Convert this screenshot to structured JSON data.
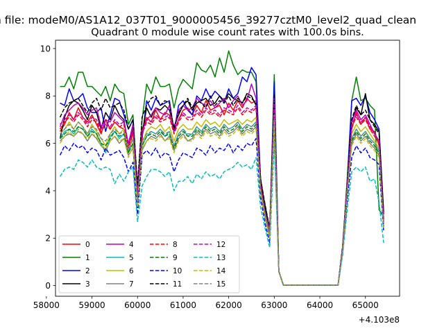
{
  "suptitle": "n file: modeM0/AS1A12_037T01_9000005456_39277cztM0_level2_quad_clean",
  "chart_data": {
    "type": "line",
    "title": "Quadrant 0 module wise count rates with 100.0s bins.",
    "xlabel": "",
    "ylabel": "",
    "x_offset_label": "+4.103e8",
    "xlim": [
      58200,
      65750
    ],
    "ylim": [
      -0.45,
      10.35
    ],
    "x_ticks": [
      58000,
      59000,
      60000,
      61000,
      62000,
      63000,
      64000,
      65000
    ],
    "x_tick_labels": [
      "58000",
      "59000",
      "60000",
      "61000",
      "62000",
      "63000",
      "64000",
      "65000"
    ],
    "y_ticks": [
      0,
      2,
      4,
      6,
      8,
      10
    ],
    "y_tick_labels": [
      "0",
      "2",
      "4",
      "6",
      "8",
      "10"
    ],
    "grid": false,
    "legend_position": "lower-left",
    "legend_columns": 4,
    "x": [
      58300,
      58400,
      58500,
      58600,
      58700,
      58800,
      58900,
      59000,
      59100,
      59200,
      59300,
      59400,
      59500,
      59600,
      59700,
      59800,
      59900,
      60000,
      60100,
      60200,
      60300,
      60400,
      60500,
      60600,
      60700,
      60800,
      60900,
      61000,
      61100,
      61200,
      61300,
      61400,
      61500,
      61600,
      61700,
      61800,
      61900,
      62000,
      62100,
      62200,
      62300,
      62400,
      62500,
      62600,
      62700,
      62800,
      62900,
      63000,
      63100,
      63200,
      64400,
      64500,
      64600,
      64700,
      64800,
      64900,
      65000,
      65100,
      65200,
      65300,
      65400
    ],
    "series": [
      {
        "name": "0",
        "color": "#ff0000",
        "dash": "solid",
        "values": [
          6.5,
          6.8,
          7.3,
          7.0,
          7.5,
          7.1,
          6.9,
          7.2,
          6.8,
          6.4,
          7.0,
          6.6,
          6.9,
          6.7,
          6.6,
          5.6,
          6.5,
          3.6,
          6.6,
          7.1,
          6.9,
          7.4,
          7.0,
          7.3,
          7.2,
          6.5,
          7.0,
          7.4,
          7.5,
          7.2,
          7.6,
          7.3,
          7.8,
          7.4,
          7.5,
          7.6,
          7.2,
          7.7,
          7.4,
          7.8,
          7.5,
          7.9,
          7.7,
          7.8,
          4.2,
          3.1,
          2.4,
          8.2,
          0.6,
          0.02,
          0.02,
          1.6,
          4.2,
          6.6,
          7.3,
          6.8,
          7.1,
          6.6,
          6.5,
          5.9,
          2.7
        ]
      },
      {
        "name": "1",
        "color": "#008000",
        "dash": "solid",
        "values": [
          8.4,
          8.4,
          8.8,
          8.3,
          9.0,
          9.0,
          8.4,
          8.4,
          8.2,
          8.0,
          8.4,
          7.8,
          8.5,
          8.2,
          8.1,
          6.8,
          7.2,
          4.2,
          7.0,
          8.5,
          8.1,
          8.8,
          8.4,
          8.4,
          8.5,
          7.5,
          8.3,
          8.7,
          8.5,
          8.3,
          9.4,
          9.1,
          9.0,
          9.3,
          8.8,
          9.6,
          9.0,
          9.9,
          9.3,
          8.9,
          9.1,
          9.0,
          9.0,
          8.6,
          4.2,
          3.4,
          2.3,
          8.9,
          0.6,
          0.02,
          0.02,
          1.6,
          4.5,
          7.8,
          8.8,
          7.8,
          7.9,
          7.6,
          7.4,
          3.2,
          2.9
        ]
      },
      {
        "name": "2",
        "color": "#0000ff",
        "dash": "solid",
        "values": [
          7.7,
          7.6,
          8.3,
          7.8,
          7.9,
          8.1,
          7.5,
          7.3,
          7.3,
          7.5,
          6.5,
          7.2,
          7.9,
          7.8,
          7.2,
          6.6,
          7.0,
          3.9,
          6.2,
          7.8,
          7.4,
          7.9,
          7.6,
          7.7,
          7.8,
          6.5,
          7.6,
          7.8,
          7.4,
          7.2,
          8.0,
          7.8,
          8.3,
          7.9,
          8.2,
          8.0,
          7.7,
          8.3,
          7.9,
          8.1,
          8.8,
          8.6,
          9.2,
          8.9,
          4.4,
          3.2,
          2.2,
          8.6,
          0.6,
          0.02,
          0.02,
          1.6,
          4.2,
          7.8,
          7.9,
          7.6,
          8.0,
          7.3,
          7.0,
          6.6,
          3.0
        ]
      },
      {
        "name": "3",
        "color": "#000000",
        "dash": "solid",
        "values": [
          6.2,
          7.1,
          7.6,
          7.8,
          7.7,
          7.4,
          7.0,
          7.6,
          7.3,
          6.6,
          7.3,
          7.0,
          7.6,
          7.2,
          7.0,
          5.9,
          6.7,
          3.8,
          6.4,
          7.5,
          7.1,
          7.5,
          7.4,
          7.6,
          7.4,
          6.7,
          7.2,
          7.6,
          7.8,
          7.4,
          7.7,
          7.8,
          7.9,
          7.6,
          7.7,
          8.0,
          7.8,
          8.1,
          7.9,
          7.8,
          7.7,
          8.1,
          8.0,
          7.6,
          4.5,
          3.3,
          2.4,
          7.9,
          0.6,
          0.02,
          0.02,
          1.6,
          4.3,
          6.9,
          7.5,
          7.2,
          8.1,
          7.0,
          6.8,
          6.5,
          3.1
        ]
      },
      {
        "name": "4",
        "color": "#bf00bf",
        "dash": "solid",
        "values": [
          6.7,
          7.2,
          7.4,
          7.6,
          7.7,
          7.5,
          7.2,
          7.4,
          7.5,
          6.7,
          7.0,
          6.9,
          7.3,
          7.1,
          6.9,
          6.0,
          6.8,
          4.1,
          6.5,
          7.0,
          7.2,
          7.5,
          7.3,
          7.2,
          7.6,
          6.6,
          7.4,
          7.6,
          7.4,
          7.5,
          7.9,
          7.7,
          7.6,
          7.8,
          7.5,
          7.7,
          7.9,
          7.5,
          7.8,
          8.0,
          7.6,
          7.8,
          8.5,
          7.9,
          4.3,
          3.0,
          2.3,
          8.0,
          0.6,
          0.02,
          0.02,
          1.6,
          4.2,
          6.9,
          7.4,
          7.0,
          7.2,
          6.8,
          6.4,
          6.1,
          2.6
        ]
      },
      {
        "name": "5",
        "color": "#00bfbf",
        "dash": "solid",
        "values": [
          6.2,
          6.5,
          6.6,
          6.4,
          6.7,
          6.6,
          6.3,
          6.6,
          6.4,
          6.0,
          5.6,
          6.3,
          6.5,
          6.2,
          6.4,
          5.7,
          6.0,
          3.4,
          5.9,
          6.3,
          6.5,
          6.4,
          6.6,
          6.3,
          6.5,
          5.9,
          6.4,
          6.6,
          6.3,
          6.4,
          6.7,
          6.5,
          6.8,
          6.6,
          6.7,
          6.5,
          6.8,
          6.6,
          6.7,
          6.9,
          6.6,
          6.8,
          6.7,
          6.9,
          4.0,
          3.0,
          2.1,
          7.2,
          0.6,
          0.02,
          0.02,
          1.5,
          4.0,
          6.2,
          6.6,
          6.3,
          6.5,
          6.2,
          6.0,
          5.7,
          2.5
        ]
      },
      {
        "name": "6",
        "color": "#bfbf00",
        "dash": "solid",
        "values": [
          6.4,
          6.6,
          6.9,
          6.6,
          6.9,
          6.7,
          6.4,
          6.8,
          6.5,
          6.2,
          5.9,
          6.4,
          6.7,
          6.4,
          6.6,
          5.9,
          6.2,
          3.5,
          6.0,
          6.5,
          6.7,
          6.6,
          6.8,
          6.5,
          6.7,
          6.1,
          6.6,
          6.8,
          6.6,
          6.6,
          6.9,
          6.7,
          7.0,
          6.8,
          6.9,
          6.7,
          7.0,
          6.8,
          6.9,
          7.0,
          6.8,
          7.0,
          6.9,
          7.1,
          4.1,
          3.0,
          2.2,
          7.5,
          0.6,
          0.02,
          0.02,
          1.5,
          4.1,
          6.4,
          6.8,
          6.5,
          6.7,
          6.4,
          6.1,
          5.8,
          2.6
        ]
      },
      {
        "name": "7",
        "color": "#808080",
        "dash": "solid",
        "values": [
          6.1,
          6.3,
          6.4,
          6.3,
          6.5,
          6.4,
          6.1,
          6.4,
          6.2,
          5.9,
          5.7,
          6.1,
          6.3,
          6.0,
          6.2,
          5.5,
          5.8,
          3.3,
          5.7,
          6.1,
          6.3,
          6.2,
          6.4,
          6.1,
          6.3,
          5.7,
          6.2,
          6.4,
          6.1,
          6.2,
          6.5,
          6.3,
          6.6,
          6.4,
          6.5,
          6.3,
          6.6,
          6.4,
          6.5,
          6.7,
          6.4,
          6.6,
          6.5,
          6.7,
          3.9,
          2.9,
          2.0,
          7.0,
          0.6,
          0.02,
          0.02,
          1.5,
          3.9,
          6.0,
          6.4,
          6.1,
          6.3,
          6.0,
          5.8,
          5.5,
          2.4
        ]
      },
      {
        "name": "8",
        "color": "#ff0000",
        "dash": "dashed",
        "values": [
          6.6,
          6.9,
          7.1,
          6.9,
          7.2,
          7.0,
          6.7,
          7.0,
          6.9,
          6.5,
          6.8,
          6.6,
          6.9,
          6.7,
          6.8,
          5.8,
          6.5,
          3.7,
          6.4,
          6.9,
          6.8,
          7.1,
          6.9,
          7.0,
          7.1,
          6.4,
          6.9,
          7.2,
          7.0,
          7.0,
          7.3,
          7.1,
          7.4,
          7.2,
          7.3,
          7.1,
          7.4,
          7.3,
          7.2,
          7.5,
          7.2,
          7.4,
          7.3,
          7.5,
          4.2,
          3.1,
          2.3,
          7.7,
          0.6,
          0.02,
          0.02,
          1.6,
          4.2,
          6.7,
          7.1,
          6.8,
          7.0,
          6.6,
          6.3,
          6.0,
          2.7
        ]
      },
      {
        "name": "9",
        "color": "#008000",
        "dash": "dashed",
        "values": [
          6.2,
          6.4,
          6.6,
          6.5,
          6.7,
          6.6,
          6.3,
          6.5,
          6.4,
          6.0,
          5.9,
          6.2,
          6.5,
          6.3,
          6.4,
          5.6,
          6.0,
          3.4,
          5.9,
          6.3,
          6.4,
          6.3,
          6.5,
          6.3,
          6.4,
          5.8,
          6.3,
          6.5,
          6.3,
          6.3,
          6.6,
          6.4,
          6.7,
          6.5,
          6.6,
          6.4,
          6.7,
          6.5,
          6.6,
          6.8,
          6.5,
          6.7,
          6.6,
          6.8,
          4.0,
          2.9,
          2.1,
          7.1,
          0.6,
          0.02,
          0.02,
          1.5,
          4.0,
          6.1,
          6.5,
          6.2,
          6.4,
          6.1,
          5.9,
          5.6,
          2.5
        ]
      },
      {
        "name": "10",
        "color": "#0000ff",
        "dash": "dashed",
        "values": [
          5.5,
          5.9,
          5.7,
          6.0,
          5.8,
          5.9,
          5.6,
          5.8,
          5.7,
          5.3,
          5.8,
          5.5,
          5.6,
          5.7,
          5.4,
          4.8,
          5.2,
          3.0,
          5.5,
          5.7,
          5.5,
          5.8,
          5.4,
          5.6,
          5.5,
          4.8,
          5.3,
          5.6,
          5.5,
          5.4,
          5.8,
          5.7,
          5.5,
          5.9,
          5.6,
          5.8,
          5.7,
          6.0,
          5.6,
          5.9,
          5.7,
          6.0,
          5.9,
          6.2,
          3.7,
          2.6,
          1.8,
          6.5,
          0.6,
          0.02,
          0.02,
          1.4,
          3.6,
          5.4,
          5.9,
          5.6,
          5.8,
          5.4,
          5.3,
          5.1,
          2.3
        ]
      },
      {
        "name": "11",
        "color": "#000000",
        "dash": "dashed",
        "values": [
          7.1,
          7.5,
          7.7,
          7.8,
          7.9,
          7.6,
          7.3,
          7.7,
          7.9,
          7.4,
          7.9,
          7.5,
          7.6,
          7.7,
          7.4,
          6.6,
          7.0,
          4.2,
          7.1,
          7.6,
          7.9,
          8.0,
          7.6,
          7.8,
          7.7,
          6.6,
          7.3,
          7.6,
          7.9,
          7.5,
          7.8,
          7.7,
          7.5,
          8.0,
          7.6,
          7.8,
          7.7,
          8.0,
          7.6,
          7.9,
          7.7,
          8.0,
          7.9,
          7.7,
          4.5,
          3.4,
          2.4,
          8.1,
          0.6,
          0.02,
          0.02,
          1.7,
          4.3,
          7.0,
          7.6,
          7.2,
          7.4,
          7.0,
          6.7,
          6.4,
          2.8
        ]
      },
      {
        "name": "12",
        "color": "#bf00bf",
        "dash": "dashed",
        "values": [
          6.8,
          7.0,
          7.2,
          7.0,
          7.3,
          7.1,
          6.8,
          7.1,
          7.0,
          6.6,
          6.9,
          6.7,
          7.0,
          6.8,
          6.9,
          5.9,
          6.6,
          3.8,
          6.5,
          7.0,
          6.9,
          7.2,
          7.0,
          7.1,
          7.2,
          6.5,
          7.0,
          7.3,
          7.1,
          7.1,
          7.4,
          7.2,
          7.5,
          7.3,
          7.4,
          7.2,
          7.5,
          7.4,
          7.3,
          7.6,
          7.3,
          7.5,
          7.4,
          7.6,
          4.2,
          3.1,
          2.3,
          7.8,
          0.6,
          0.02,
          0.02,
          1.6,
          4.2,
          6.8,
          7.2,
          6.9,
          7.1,
          6.7,
          6.4,
          6.1,
          2.7
        ]
      },
      {
        "name": "13",
        "color": "#00bfbf",
        "dash": "dashed",
        "values": [
          4.6,
          4.9,
          5.0,
          4.9,
          5.3,
          5.2,
          5.0,
          5.3,
          5.0,
          4.9,
          5.0,
          4.9,
          4.3,
          4.7,
          4.4,
          4.8,
          5.0,
          2.7,
          4.2,
          4.6,
          4.9,
          4.9,
          4.8,
          4.6,
          4.8,
          4.0,
          4.4,
          4.4,
          4.6,
          4.3,
          4.7,
          4.5,
          4.8,
          4.6,
          4.7,
          4.5,
          4.8,
          4.9,
          5.0,
          5.2,
          5.0,
          5.1,
          4.9,
          5.4,
          3.3,
          2.4,
          1.6,
          6.1,
          0.6,
          0.02,
          0.02,
          1.3,
          3.2,
          4.8,
          5.0,
          4.8,
          5.0,
          4.4,
          4.5,
          3.5,
          1.8
        ]
      },
      {
        "name": "14",
        "color": "#bfbf00",
        "dash": "dashed",
        "values": [
          6.0,
          6.3,
          6.5,
          6.3,
          6.6,
          6.4,
          6.2,
          6.4,
          6.3,
          5.9,
          5.8,
          6.1,
          6.3,
          6.1,
          6.2,
          5.4,
          5.9,
          3.3,
          5.8,
          6.1,
          6.2,
          6.1,
          6.3,
          6.1,
          6.2,
          5.6,
          6.1,
          6.3,
          6.1,
          6.1,
          6.4,
          6.2,
          6.5,
          6.3,
          6.4,
          6.2,
          6.5,
          6.3,
          6.4,
          6.6,
          6.3,
          6.5,
          6.4,
          6.6,
          3.9,
          2.8,
          2.0,
          6.9,
          0.6,
          0.02,
          0.02,
          1.5,
          3.9,
          5.9,
          6.3,
          6.0,
          6.2,
          5.9,
          5.7,
          5.4,
          2.4
        ]
      },
      {
        "name": "15",
        "color": "#808080",
        "dash": "dashed",
        "values": [
          6.4,
          6.6,
          6.8,
          6.6,
          6.9,
          6.7,
          6.4,
          6.7,
          6.6,
          6.2,
          6.1,
          6.4,
          6.6,
          6.4,
          6.5,
          5.7,
          6.2,
          3.5,
          6.1,
          6.4,
          6.5,
          6.4,
          6.6,
          6.4,
          6.5,
          5.9,
          6.4,
          6.6,
          6.4,
          6.4,
          6.7,
          6.5,
          6.8,
          6.6,
          6.7,
          6.5,
          6.8,
          6.6,
          6.7,
          6.9,
          6.6,
          6.8,
          6.7,
          6.9,
          4.0,
          3.0,
          2.1,
          7.2,
          0.6,
          0.02,
          0.02,
          1.5,
          4.0,
          6.2,
          6.6,
          6.3,
          6.5,
          6.2,
          6.0,
          5.7,
          2.5
        ]
      }
    ]
  }
}
